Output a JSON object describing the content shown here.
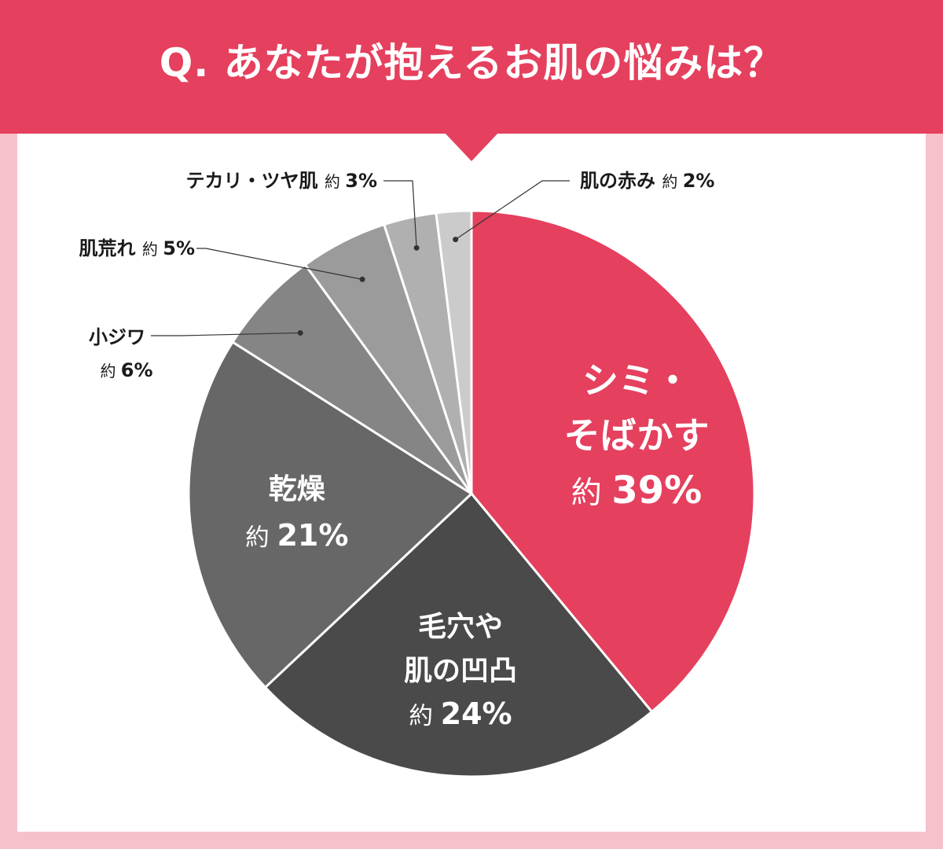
{
  "title": "Q. あなたが抱えるお肌の悩みは？",
  "chart_data": {
    "type": "pie",
    "title": "Q. あなたが抱えるお肌の悩みは？",
    "unit": "%",
    "slices": [
      {
        "label_lines": [
          "シミ・",
          "そばかす"
        ],
        "prefix": "約",
        "value": 39,
        "value_text": "39%",
        "color": "#e5405e"
      },
      {
        "label_lines": [
          "毛穴や",
          "肌の凹凸"
        ],
        "prefix": "約",
        "value": 24,
        "value_text": "24%",
        "color": "#4a4a4a"
      },
      {
        "label_lines": [
          "乾燥"
        ],
        "prefix": "約",
        "value": 21,
        "value_text": "21%",
        "color": "#676767"
      },
      {
        "label_lines": [
          "小ジワ"
        ],
        "prefix": "約",
        "value": 6,
        "value_text": "6%",
        "color": "#858585"
      },
      {
        "label_lines": [
          "肌荒れ"
        ],
        "prefix": "約",
        "value": 5,
        "value_text": "5%",
        "color": "#9b9b9b"
      },
      {
        "label_lines": [
          "テカリ・ツヤ肌"
        ],
        "prefix": "約",
        "value": 3,
        "value_text": "3%",
        "color": "#b0b0b0"
      },
      {
        "label_lines": [
          "肌の赤み"
        ],
        "prefix": "約",
        "value": 2,
        "value_text": "2%",
        "color": "#cbcbcb"
      }
    ]
  }
}
